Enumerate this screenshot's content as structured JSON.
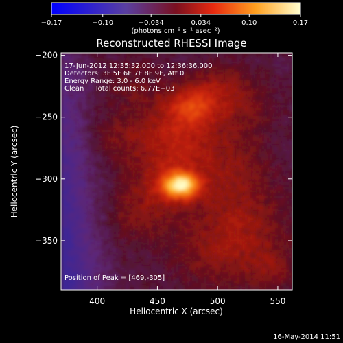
{
  "colorbar": {
    "tick_labels": [
      "−0.17",
      "−0.10",
      "−0.034",
      "0.034",
      "0.10",
      "0.17"
    ],
    "tick_values": [
      -0.17,
      -0.1,
      -0.034,
      0.034,
      0.1,
      0.17
    ],
    "range": [
      -0.17,
      0.17
    ],
    "units_label": "(photons cm⁻² s⁻¹ asec⁻²)"
  },
  "chart_data": {
    "type": "heatmap",
    "title": "Reconstructed RHESSI Image",
    "xlabel": "Heliocentric X (arcsec)",
    "ylabel": "Heliocentric Y (arcsec)",
    "xlim": [
      370,
      562
    ],
    "ylim": [
      -390,
      -198
    ],
    "x_ticks": [
      400,
      450,
      500,
      550
    ],
    "y_ticks": [
      -200,
      -250,
      -300,
      -350
    ],
    "x_tick_labels": [
      "400",
      "450",
      "500",
      "550"
    ],
    "y_tick_labels": [
      "−200",
      "−250",
      "−300",
      "−350"
    ],
    "colorscale": "hot",
    "peak": [
      469,
      -305
    ],
    "annotations": [
      "17-Jun-2012 12:35:32.000 to 12:36:36.000",
      "Detectors: 3F 5F 6F 7F 8F 9F, Att 0",
      "Energy Range: 3.0 - 6.0 keV",
      "Clean     Total counts: 6.77E+03"
    ],
    "peak_label": "Position of Peak = [469,-305]"
  },
  "footer": {
    "timestamp": "16-May-2014 11:51"
  }
}
